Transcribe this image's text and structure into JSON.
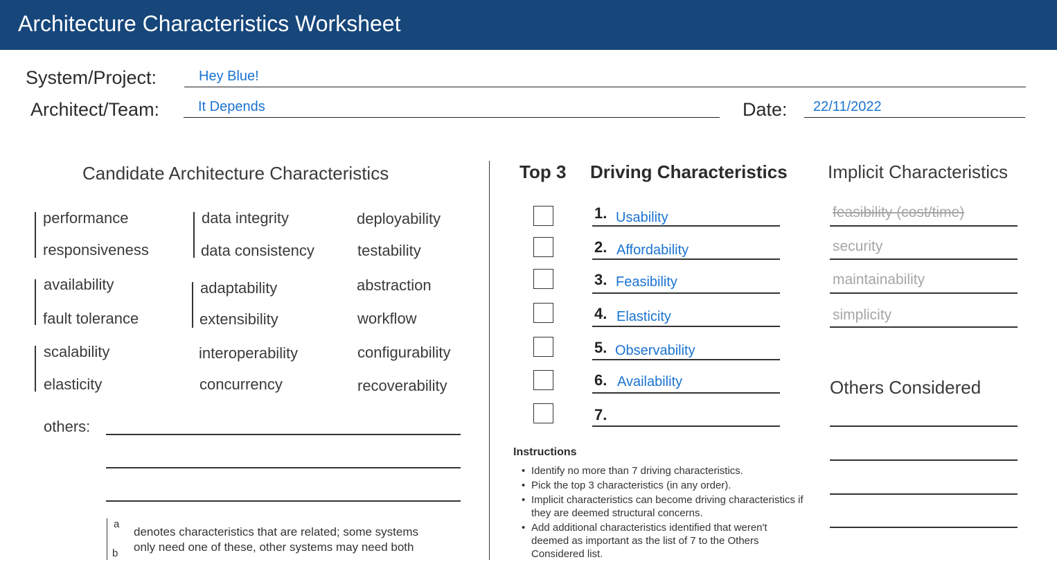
{
  "header": {
    "title": "Architecture Characteristics Worksheet"
  },
  "fields": {
    "system_label": "System/Project:",
    "system_value": "Hey Blue!",
    "architect_label": "Architect/Team:",
    "architect_value": "It Depends",
    "date_label": "Date:",
    "date_value": "22/11/2022"
  },
  "candidates": {
    "title": "Candidate Architecture Characteristics",
    "col1": [
      "performance",
      "responsiveness",
      "availability",
      "fault tolerance",
      "scalability",
      "elasticity"
    ],
    "col2": [
      "data integrity",
      "data consistency",
      "adaptability",
      "extensibility",
      "interoperability",
      "concurrency"
    ],
    "col3": [
      "deployability",
      "testability",
      "abstraction",
      "workflow",
      "configurability",
      "recoverability"
    ],
    "others_label": "others:",
    "legend_a": "a",
    "legend_b": "b",
    "legend_line1": "denotes characteristics that are related; some systems",
    "legend_line2": "only need one of these, other systems may need both"
  },
  "driving": {
    "top3_title": "Top 3",
    "title": "Driving Characteristics",
    "items": [
      {
        "num": "1.",
        "value": "Usability"
      },
      {
        "num": "2.",
        "value": "Affordability"
      },
      {
        "num": "3.",
        "value": "Feasibility"
      },
      {
        "num": "4.",
        "value": "Elasticity"
      },
      {
        "num": "5.",
        "value": "Observability"
      },
      {
        "num": "6.",
        "value": "Availability"
      },
      {
        "num": "7.",
        "value": ""
      }
    ]
  },
  "instructions": {
    "title": "Instructions",
    "items": [
      "Identify no more than 7 driving characteristics.",
      "Pick the top 3 characteristics (in any order).",
      "Implicit characteristics can become driving characteristics if they are deemed structural concerns.",
      "Add additional characteristics identified that weren't deemed as important as the list of 7 to the Others Considered list."
    ]
  },
  "implicit": {
    "title": "Implicit Characteristics",
    "items": [
      "feasibility (cost/time)",
      "security",
      "maintainability",
      "simplicity"
    ]
  },
  "others_considered": {
    "title": "Others Considered"
  },
  "colors": {
    "header_bg": "#16467a",
    "value_blue": "#1a73d1",
    "implicit_gray": "#a6a6a6"
  }
}
